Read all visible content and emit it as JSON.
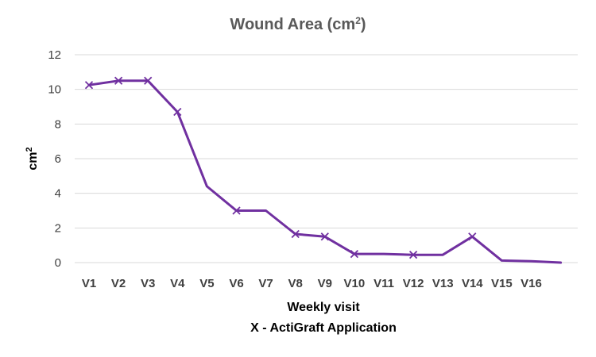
{
  "chart_data": {
    "type": "line",
    "title": "Wound Area (cm²)",
    "title_main": "Wound Area (cm",
    "title_sup": "2",
    "title_end": ")",
    "xlabel": "Weekly visit",
    "xlabel_note": "X - ActiGraft Application",
    "ylabel": "cm²",
    "ylabel_main": "cm",
    "ylabel_sup": "2",
    "ylim": [
      0,
      12
    ],
    "yticks": [
      0,
      2,
      4,
      6,
      8,
      10,
      12
    ],
    "grid": true,
    "categories": [
      "V1",
      "V2",
      "V3",
      "V4",
      "V5",
      "V6",
      "V7",
      "V8",
      "V9",
      "V10",
      "V11",
      "V12",
      "V13",
      "V14",
      "V15",
      "V16",
      ""
    ],
    "series": [
      {
        "color": "#7030a0",
        "values": [
          10.25,
          10.5,
          10.5,
          8.7,
          4.4,
          3.0,
          3.0,
          1.65,
          1.5,
          0.5,
          0.5,
          0.45,
          0.45,
          1.5,
          0.12,
          0.08,
          0.0
        ],
        "markers": [
          true,
          true,
          true,
          true,
          false,
          true,
          false,
          true,
          true,
          true,
          false,
          true,
          false,
          true,
          false,
          false,
          false
        ]
      }
    ]
  }
}
